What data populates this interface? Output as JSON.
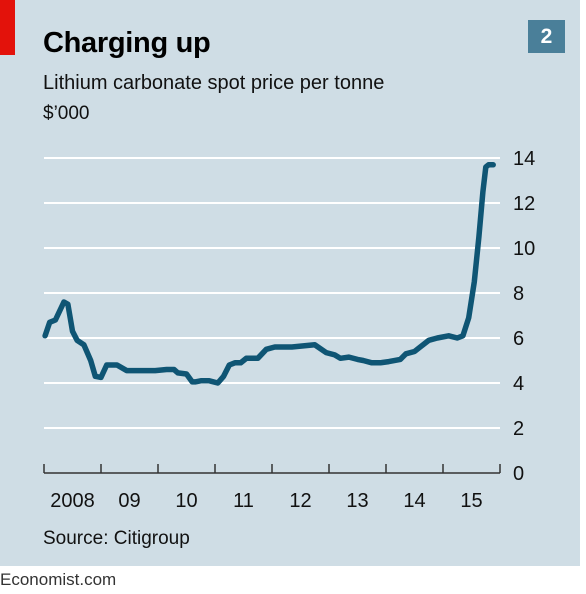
{
  "title": "Charging up",
  "subtitle": "Lithium carbonate spot price per tonne",
  "unit": "$’000",
  "badge": "2",
  "source": "Source: Citigroup",
  "footer": "Economist.com",
  "colors": {
    "background": "#cfdde5",
    "line": "#0f5574",
    "accent": "#e3120b",
    "badge": "#4a7f99",
    "grid": "#ffffff"
  },
  "chart_data": {
    "type": "line",
    "title": "Charging up",
    "subtitle": "Lithium carbonate spot price per tonne",
    "ylabel": "$’000",
    "ylim": [
      0,
      14
    ],
    "yticks": [
      0,
      2,
      4,
      6,
      8,
      10,
      12,
      14
    ],
    "xlim": [
      2008,
      2016.0
    ],
    "xticks": [
      {
        "value": 2008,
        "label": "2008"
      },
      {
        "value": 2009,
        "label": "09"
      },
      {
        "value": 2010,
        "label": "10"
      },
      {
        "value": 2011,
        "label": "11"
      },
      {
        "value": 2012,
        "label": "12"
      },
      {
        "value": 2013,
        "label": "13"
      },
      {
        "value": 2014,
        "label": "14"
      },
      {
        "value": 2015,
        "label": "15"
      }
    ],
    "grid": true,
    "series": [
      {
        "x": [
          2008.02,
          2008.1,
          2008.2,
          2008.35,
          2008.42,
          2008.5,
          2008.58,
          2008.7,
          2008.82,
          2008.9,
          2009.0,
          2009.1,
          2009.28,
          2009.45,
          2009.55,
          2009.75,
          2009.95,
          2010.15,
          2010.28,
          2010.35,
          2010.5,
          2010.6,
          2010.65,
          2010.75,
          2010.9,
          2011.05,
          2011.15,
          2011.25,
          2011.35,
          2011.45,
          2011.55,
          2011.75,
          2011.9,
          2012.05,
          2012.2,
          2012.35,
          2012.55,
          2012.75,
          2012.95,
          2013.1,
          2013.2,
          2013.35,
          2013.5,
          2013.6,
          2013.75,
          2013.9,
          2014.05,
          2014.25,
          2014.35,
          2014.5,
          2014.6,
          2014.75,
          2014.9,
          2015.1,
          2015.25,
          2015.35,
          2015.45,
          2015.55,
          2015.63,
          2015.7,
          2015.75,
          2015.8,
          2015.85,
          2015.88
        ],
        "values": [
          6.1,
          6.7,
          6.8,
          7.6,
          7.5,
          6.3,
          5.9,
          5.7,
          5.0,
          4.3,
          4.25,
          4.8,
          4.8,
          4.55,
          4.55,
          4.55,
          4.55,
          4.6,
          4.6,
          4.45,
          4.4,
          4.05,
          4.05,
          4.1,
          4.1,
          4.0,
          4.3,
          4.8,
          4.9,
          4.9,
          5.1,
          5.1,
          5.5,
          5.6,
          5.6,
          5.6,
          5.65,
          5.7,
          5.35,
          5.25,
          5.1,
          5.15,
          5.05,
          5.0,
          4.9,
          4.9,
          4.95,
          5.05,
          5.3,
          5.4,
          5.6,
          5.9,
          6.0,
          6.1,
          6.0,
          6.1,
          6.9,
          8.5,
          10.5,
          12.5,
          13.6,
          13.7,
          13.7,
          13.7
        ]
      }
    ]
  }
}
